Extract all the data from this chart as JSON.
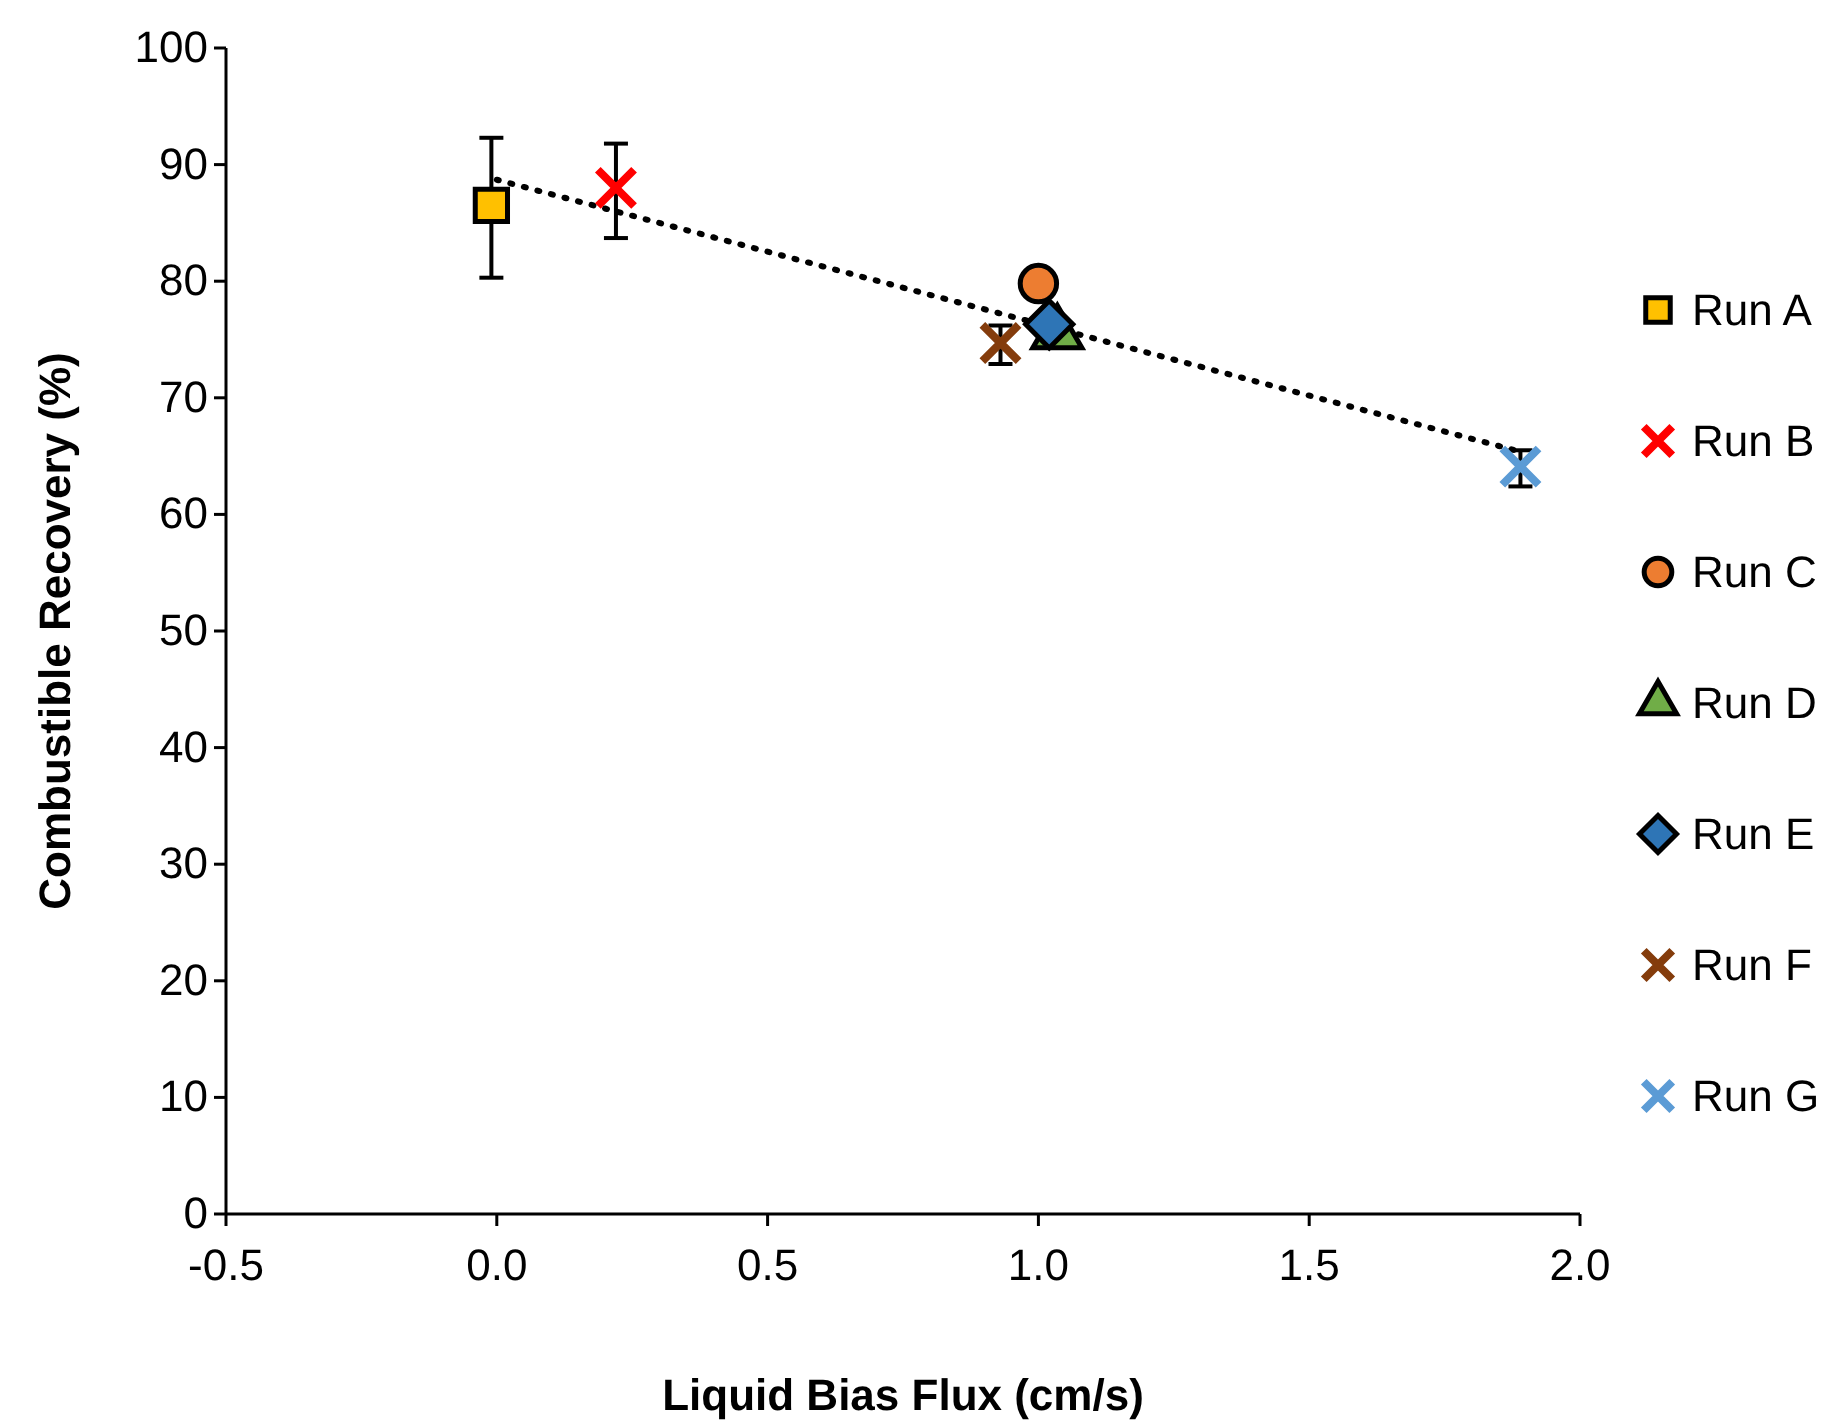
{
  "chart_data": {
    "type": "scatter",
    "xlabel": "Liquid Bias Flux (cm/s)",
    "ylabel": "Combustible Recovery (%)",
    "xlim": [
      -0.5,
      2.0
    ],
    "xticks": [
      {
        "value": -0.5,
        "label": "-0.5"
      },
      {
        "value": 0,
        "label": "0.0"
      },
      {
        "value": 0.5,
        "label": "0.5"
      },
      {
        "value": 1,
        "label": "1.0"
      },
      {
        "value": 1.5,
        "label": "1.5"
      },
      {
        "value": 2,
        "label": "2.0"
      }
    ],
    "ylim": [
      0,
      100
    ],
    "yticks": [
      0,
      10,
      20,
      30,
      40,
      50,
      60,
      70,
      80,
      90,
      100
    ],
    "grid": false,
    "legend": "right",
    "series": [
      {
        "type": "line",
        "line_style": "dotted",
        "marker": "none",
        "color": "#000000",
        "x": [
          0,
          1.88
        ],
        "values": [
          88.7,
          65.5
        ]
      },
      {
        "name": "Run A",
        "marker": "square",
        "color": "#ffc000",
        "x": [
          -0.01
        ],
        "values": [
          86.5
        ],
        "errors": [
          [
            80.3,
            92.3
          ]
        ]
      },
      {
        "name": "Run B",
        "marker": "cross",
        "color": "#ff0000",
        "x": [
          0.22
        ],
        "values": [
          88
        ],
        "errors": [
          [
            83.7,
            91.8
          ]
        ]
      },
      {
        "name": "Run C",
        "marker": "circle",
        "color": "#ed7d31",
        "x": [
          1.0
        ],
        "values": [
          79.8
        ]
      },
      {
        "name": "Run D",
        "marker": "triangle",
        "color": "#70ad47",
        "x": [
          1.035
        ],
        "values": [
          75.5
        ]
      },
      {
        "name": "Run E",
        "marker": "diamond",
        "color": "#2e75b6",
        "x": [
          1.02
        ],
        "values": [
          76.3
        ]
      },
      {
        "name": "Run F",
        "marker": "cross",
        "color": "#843c0c",
        "x": [
          0.93
        ],
        "values": [
          74.7
        ],
        "errors": [
          [
            72.9,
            76.2
          ]
        ]
      },
      {
        "name": "Run G",
        "marker": "cross",
        "color": "#5b9bd5",
        "x": [
          1.89
        ],
        "values": [
          64.1
        ],
        "errors": [
          [
            62.4,
            65.5
          ]
        ]
      }
    ]
  }
}
